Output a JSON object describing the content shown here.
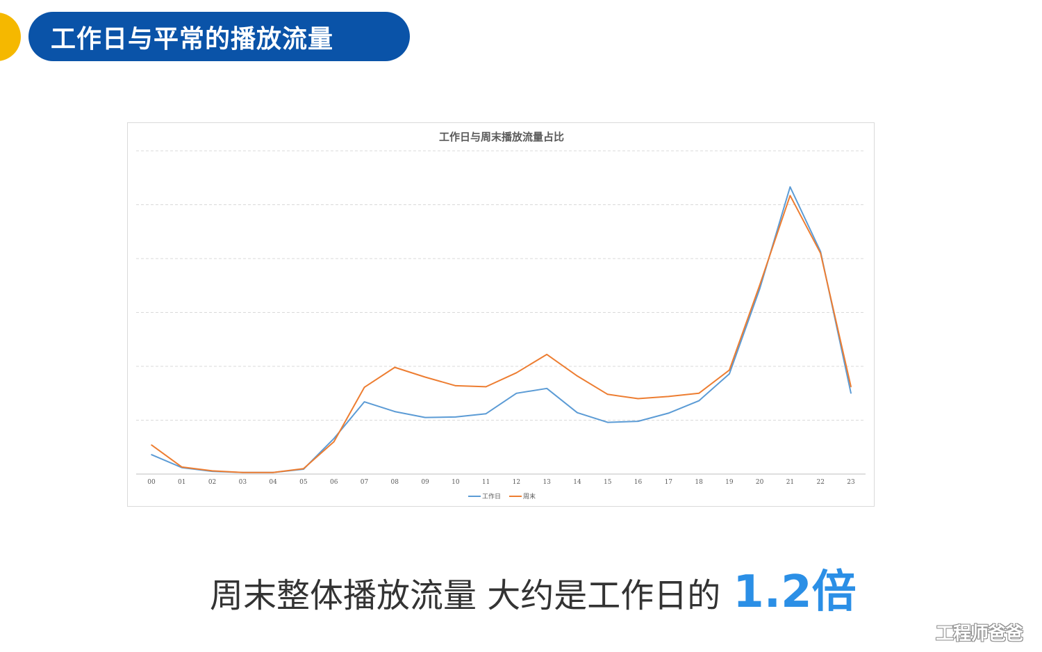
{
  "header": {
    "title": "工作日与平常的播放流量"
  },
  "summary": {
    "text": "周末整体播放流量 大约是工作日的",
    "highlight": "1.2倍"
  },
  "watermark": "工程师爸爸",
  "colors": {
    "header_bg": "#0a53a8",
    "accent": "#f5b800",
    "workday_line": "#5b9bd5",
    "weekend_line": "#ed7d31",
    "highlight": "#2b8fe6"
  },
  "chart_data": {
    "type": "line",
    "title": "工作日与周末播放流量占比",
    "categories": [
      "00",
      "01",
      "02",
      "03",
      "04",
      "05",
      "06",
      "07",
      "08",
      "09",
      "10",
      "11",
      "12",
      "13",
      "14",
      "15",
      "16",
      "17",
      "18",
      "19",
      "20",
      "21",
      "22",
      "23"
    ],
    "series": [
      {
        "name": "工作日",
        "color": "#5b9bd5",
        "values": [
          0.36,
          0.12,
          0.05,
          0.03,
          0.03,
          0.09,
          0.66,
          1.34,
          1.16,
          1.05,
          1.06,
          1.12,
          1.5,
          1.59,
          1.14,
          0.96,
          0.98,
          1.13,
          1.36,
          1.86,
          3.44,
          5.33,
          4.13,
          1.5
        ]
      },
      {
        "name": "周末",
        "color": "#ed7d31",
        "values": [
          0.54,
          0.13,
          0.06,
          0.03,
          0.03,
          0.1,
          0.6,
          1.61,
          1.98,
          1.8,
          1.64,
          1.62,
          1.88,
          2.22,
          1.82,
          1.48,
          1.4,
          1.44,
          1.5,
          1.93,
          3.51,
          5.17,
          4.1,
          1.62
        ]
      }
    ],
    "ylim": [
      0,
      6
    ],
    "grid": true,
    "legend": "bottom"
  }
}
